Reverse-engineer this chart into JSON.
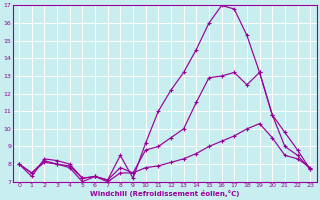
{
  "xlabel": "Windchill (Refroidissement éolien,°C)",
  "xlim": [
    -0.5,
    23.5
  ],
  "ylim": [
    7,
    17
  ],
  "xticks": [
    0,
    1,
    2,
    3,
    4,
    5,
    6,
    7,
    8,
    9,
    10,
    11,
    12,
    13,
    14,
    15,
    16,
    17,
    18,
    19,
    20,
    21,
    22,
    23
  ],
  "yticks": [
    7,
    8,
    9,
    10,
    11,
    12,
    13,
    14,
    15,
    16,
    17
  ],
  "bg_color": "#c8eef0",
  "line_color": "#990099",
  "grid_color": "#ffffff",
  "lines": [
    {
      "x": [
        0,
        1,
        2,
        3,
        4,
        5,
        6,
        7,
        8,
        9,
        10,
        11,
        12,
        13,
        14,
        15,
        16,
        17,
        18,
        19,
        20,
        21,
        22,
        23
      ],
      "y": [
        8.0,
        7.3,
        8.3,
        8.2,
        8.0,
        7.2,
        7.3,
        7.1,
        8.5,
        7.2,
        9.2,
        11.0,
        12.2,
        13.2,
        14.5,
        16.0,
        17.0,
        16.8,
        15.3,
        13.2,
        10.8,
        9.8,
        8.8,
        7.7
      ]
    },
    {
      "x": [
        0,
        1,
        2,
        3,
        4,
        5,
        6,
        7,
        8,
        9,
        10,
        11,
        12,
        13,
        14,
        15,
        16,
        17,
        18,
        19,
        20,
        21,
        22,
        23
      ],
      "y": [
        8.0,
        7.5,
        8.2,
        8.0,
        7.9,
        7.2,
        7.3,
        7.1,
        7.8,
        7.5,
        8.8,
        9.0,
        9.5,
        10.0,
        11.5,
        12.9,
        13.0,
        13.2,
        12.5,
        13.2,
        10.8,
        9.0,
        8.5,
        7.7
      ]
    },
    {
      "x": [
        0,
        1,
        2,
        3,
        4,
        5,
        6,
        7,
        8,
        9,
        10,
        11,
        12,
        13,
        14,
        15,
        16,
        17,
        18,
        19,
        20,
        21,
        22,
        23
      ],
      "y": [
        8.0,
        7.5,
        8.1,
        8.0,
        7.8,
        7.0,
        7.3,
        7.0,
        7.5,
        7.5,
        7.8,
        7.9,
        8.1,
        8.3,
        8.6,
        9.0,
        9.3,
        9.6,
        10.0,
        10.3,
        9.5,
        8.5,
        8.3,
        7.8
      ]
    }
  ]
}
